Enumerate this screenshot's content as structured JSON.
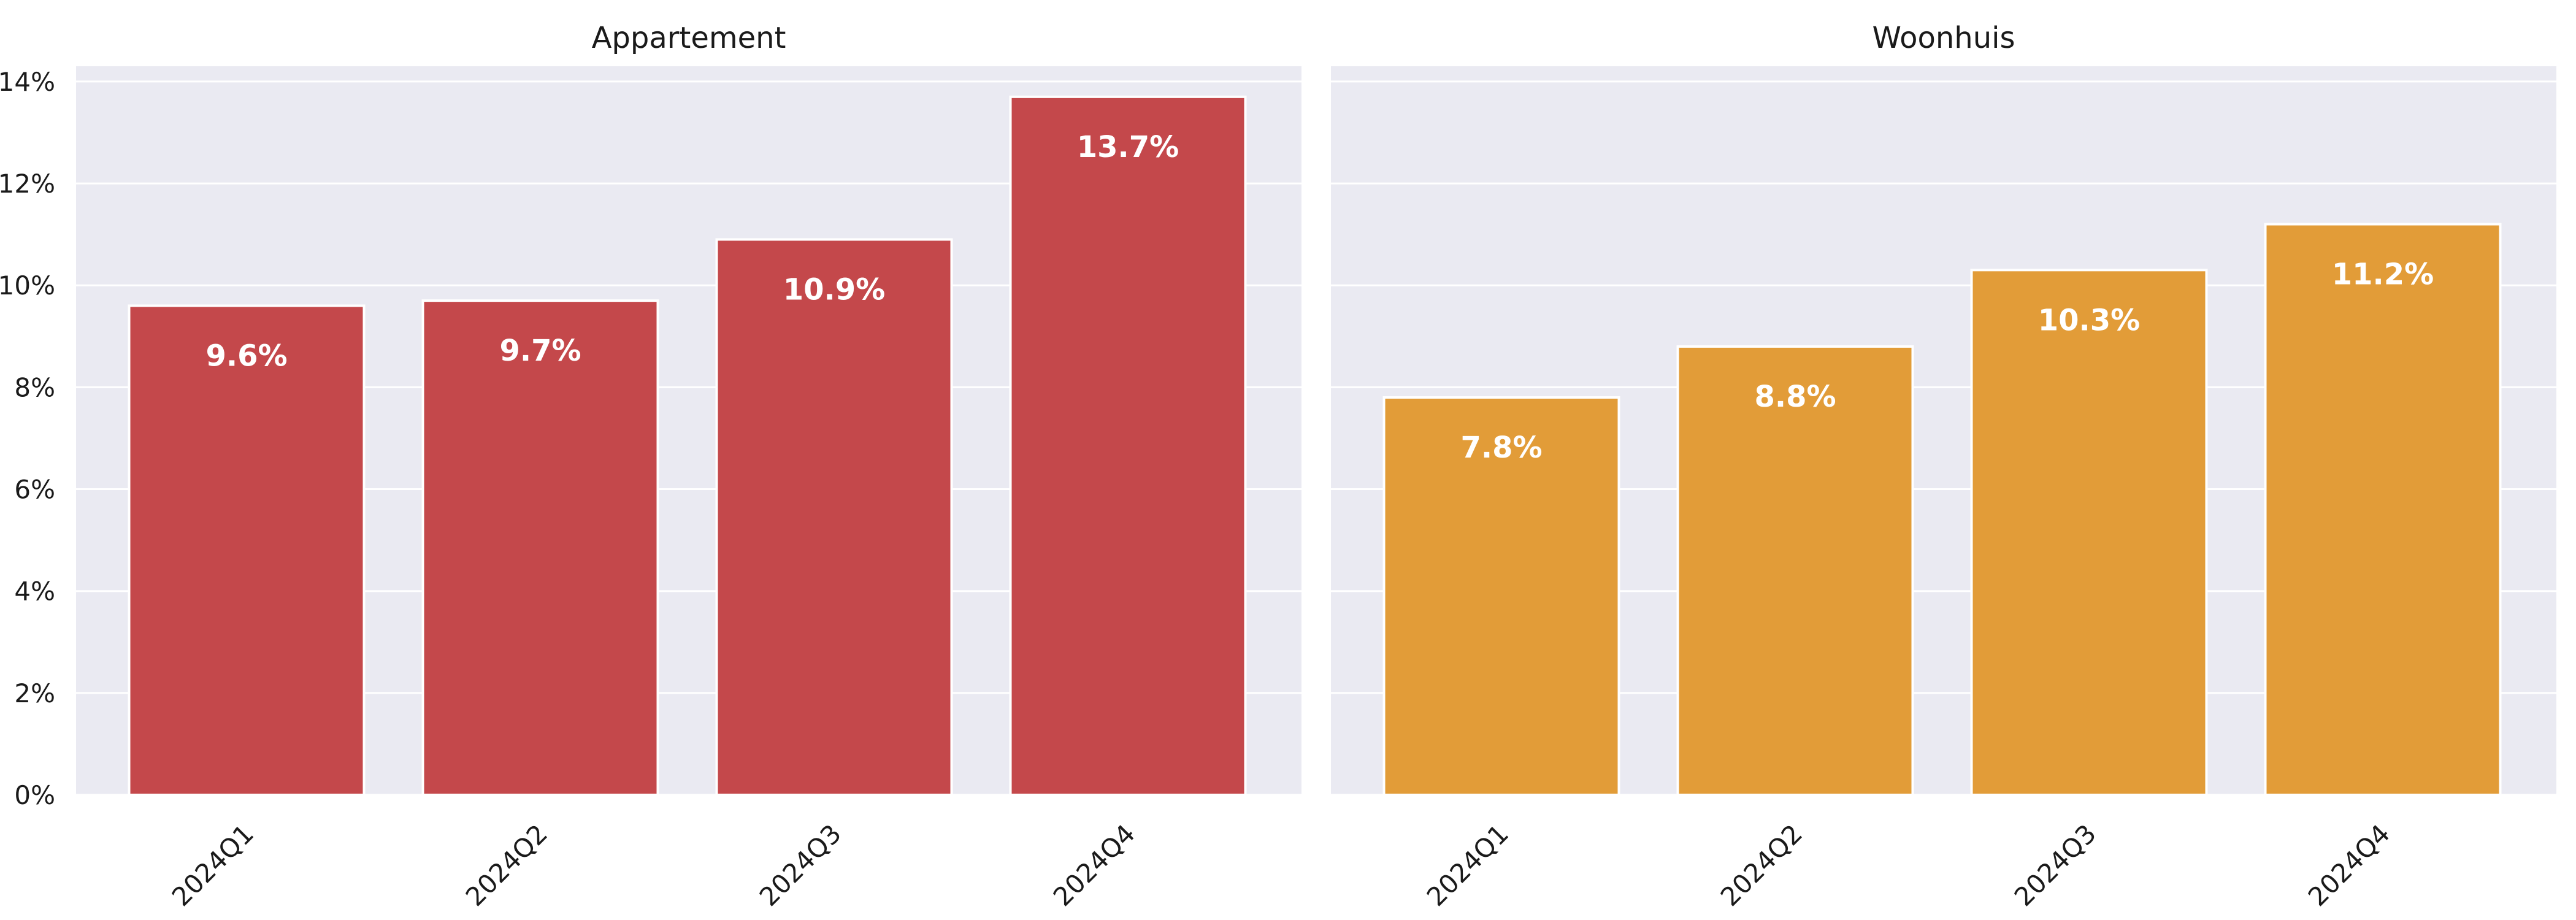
{
  "chart_data": [
    {
      "type": "bar",
      "title": "Appartement",
      "categories": [
        "2024Q1",
        "2024Q2",
        "2024Q3",
        "2024Q4"
      ],
      "values": [
        9.6,
        9.7,
        10.9,
        13.7
      ],
      "data_labels": [
        "9.6%",
        "9.7%",
        "10.9%",
        "13.7%"
      ],
      "color": "#c4484b",
      "ylim": [
        0,
        14.3
      ],
      "yticks": [
        0,
        2,
        4,
        6,
        8,
        10,
        12,
        14
      ],
      "ytick_labels": [
        "0%",
        "2%",
        "4%",
        "6%",
        "8%",
        "10%",
        "12%",
        "14%"
      ],
      "grid": true,
      "xlabel": "",
      "ylabel": ""
    },
    {
      "type": "bar",
      "title": "Woonhuis",
      "categories": [
        "2024Q1",
        "2024Q2",
        "2024Q3",
        "2024Q4"
      ],
      "values": [
        7.8,
        8.8,
        10.3,
        11.2
      ],
      "data_labels": [
        "7.8%",
        "8.8%",
        "10.3%",
        "11.2%"
      ],
      "color": "#e29c38",
      "ylim": [
        0,
        14.3
      ],
      "grid": true,
      "xlabel": "",
      "ylabel": ""
    }
  ]
}
